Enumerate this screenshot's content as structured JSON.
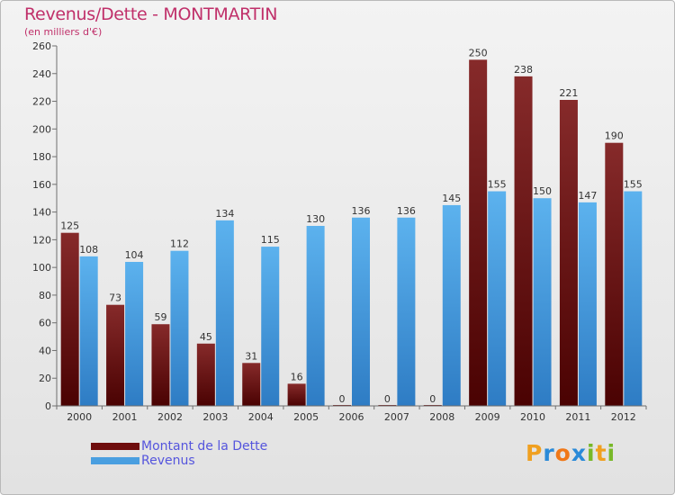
{
  "header": {
    "title": "Revenus/Dette - MONTMARTIN",
    "subtitle": "(en milliers d'€)"
  },
  "legend": {
    "items": [
      {
        "label": "Montant de la Dette",
        "color": "#6e0c0c"
      },
      {
        "label": "Revenus",
        "color": "#4a9fe0"
      }
    ]
  },
  "logo": {
    "letters": [
      {
        "char": "P",
        "color": "#f0a020"
      },
      {
        "char": "r",
        "color": "#2a8ad8"
      },
      {
        "char": "o",
        "color": "#f07818"
      },
      {
        "char": "x",
        "color": "#2a8ad8"
      },
      {
        "char": "i",
        "color": "#78b828"
      },
      {
        "char": "t",
        "color": "#f0a020"
      },
      {
        "char": "i",
        "color": "#78b828"
      }
    ]
  },
  "chart_data": {
    "type": "bar",
    "title": "Revenus/Dette - MONTMARTIN",
    "subtitle": "(en milliers d'€)",
    "categories": [
      "2000",
      "2001",
      "2002",
      "2003",
      "2004",
      "2005",
      "2006",
      "2007",
      "2008",
      "2009",
      "2010",
      "2011",
      "2012"
    ],
    "series": [
      {
        "name": "Montant de la Dette",
        "color": "#6e0c0c",
        "values": [
          125,
          73,
          59,
          45,
          31,
          16,
          0,
          0,
          0,
          250,
          238,
          221,
          190
        ]
      },
      {
        "name": "Revenus",
        "color": "#4a9fe0",
        "values": [
          108,
          104,
          112,
          134,
          115,
          130,
          136,
          136,
          145,
          155,
          150,
          147,
          155
        ]
      }
    ],
    "yticks": [
      0,
      20,
      40,
      60,
      80,
      100,
      120,
      140,
      160,
      180,
      200,
      220,
      240,
      260
    ],
    "ylim": [
      0,
      260
    ],
    "grid": false,
    "legend_position": "bottom-left"
  }
}
